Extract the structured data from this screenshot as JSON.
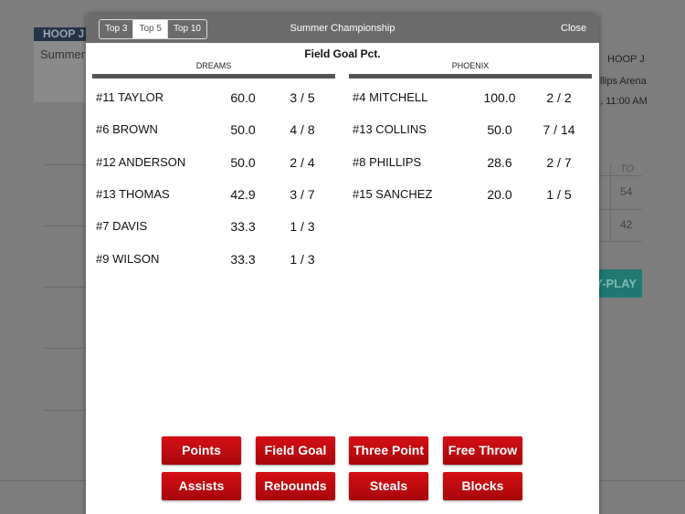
{
  "background": {
    "left_header": "HOOP J",
    "left_subtitle": "Summer",
    "right_header": "HOOP J",
    "venue": "llips Arena",
    "time": ", 11:00 AM",
    "table_header": "TO",
    "table_values": [
      "54",
      "42"
    ],
    "button": "Y-PLAY"
  },
  "modal": {
    "tabs": [
      "Top 3",
      "Top 5",
      "Top 10"
    ],
    "selected_tab": 1,
    "title": "Summer Championship",
    "close": "Close",
    "stat_title": "Field Goal Pct.",
    "teams": [
      {
        "name": "DREAMS",
        "players": [
          [
            "#11 TAYLOR",
            "60.0",
            "3 / 5"
          ],
          [
            "#6 BROWN",
            "50.0",
            "4 / 8"
          ],
          [
            "#12 ANDERSON",
            "50.0",
            "2 / 4"
          ],
          [
            "#13 THOMAS",
            "42.9",
            "3 / 7"
          ],
          [
            "#7 DAVIS",
            "33.3",
            "1 / 3"
          ],
          [
            "#9 WILSON",
            "33.3",
            "1 / 3"
          ]
        ]
      },
      {
        "name": "PHOENIX",
        "players": [
          [
            "#4 MITCHELL",
            "100.0",
            "2 / 2"
          ],
          [
            "#13 COLLINS",
            "50.0",
            "7 / 14"
          ],
          [
            "#8 PHILLIPS",
            "28.6",
            "2 / 7"
          ],
          [
            "#15 SANCHEZ",
            "20.0",
            "1 / 5"
          ]
        ]
      }
    ],
    "buttons": [
      [
        "Points",
        "Field Goal",
        "Three Point",
        "Free Throw"
      ],
      [
        "Assists",
        "Rebounds",
        "Steals",
        "Blocks"
      ]
    ]
  }
}
